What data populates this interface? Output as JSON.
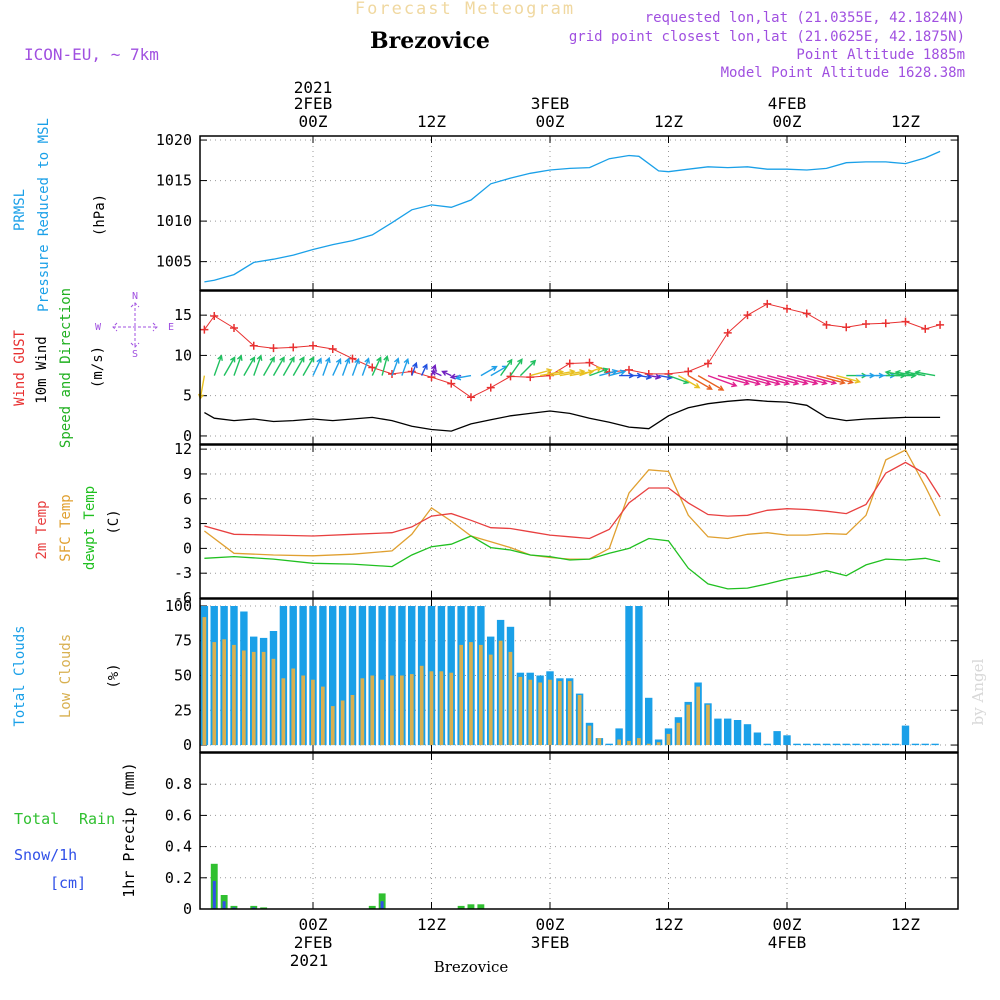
{
  "header": {
    "product": "Forecast Meteogram",
    "location": "Brezovice",
    "model": "ICON-EU, ~ 7km",
    "requested": "requested lon,lat (21.0355E, 42.1824N)",
    "gridpoint": "grid point closest lon,lat (21.0625E, 42.1875N)",
    "point_alt": "Point Altitude 1885m",
    "model_alt": "Model Point Altitude 1628.38m",
    "watermark": "by Angel",
    "footer": "Brezovice"
  },
  "time_axis": {
    "top_year": "2021",
    "bottom_year": "2021",
    "ticks": [
      {
        "hour": 0,
        "label": "00Z",
        "date": "2FEB"
      },
      {
        "hour": 12,
        "label": "12Z",
        "date": ""
      },
      {
        "hour": 24,
        "label": "00Z",
        "date": "3FEB"
      },
      {
        "hour": 36,
        "label": "12Z",
        "date": ""
      },
      {
        "hour": 48,
        "label": "00Z",
        "date": "4FEB"
      },
      {
        "hour": 60,
        "label": "12Z",
        "date": ""
      }
    ]
  },
  "panel_labels": {
    "p1": [
      "PRMSL",
      "Pressure Reduced to MSL",
      "(hPa)"
    ],
    "p2": [
      "Wind GUST",
      "10m Wind",
      "Speed and Direction",
      "(m/s)"
    ],
    "p3": [
      "2m Temp",
      "SFC Temp",
      "dewpt Temp",
      "(C)"
    ],
    "p4": [
      "Total Clouds",
      "Low Clouds",
      "(%)"
    ],
    "p5": [
      "Total",
      "Rain",
      "Snow/1h",
      "[cm]",
      "1hr Precip (mm)"
    ],
    "compass": [
      "N",
      "S",
      "W",
      "E"
    ]
  },
  "colors": {
    "pressure": "#1aa0e8",
    "gust": "#e83030",
    "wind": "#000000",
    "t2m": "#e84040",
    "sfc": "#e0a030",
    "dewpt": "#20c020",
    "total_clouds": "#1aa0e8",
    "low_clouds": "#d8b050",
    "rain": "#30c030",
    "snow": "#3050e8",
    "label_purple": "#a050e0"
  },
  "chart_data": [
    {
      "type": "line",
      "title": "PRMSL Pressure Reduced to MSL",
      "ylabel": "(hPa)",
      "ylim": [
        1001.5,
        1020.5
      ],
      "yticks": [
        1005,
        1010,
        1015,
        1020
      ],
      "x": [
        -11,
        -10,
        -8,
        -6,
        -4,
        -2,
        0,
        2,
        4,
        6,
        8,
        10,
        12,
        14,
        16,
        18,
        20,
        22,
        24,
        26,
        28,
        30,
        32,
        33,
        35,
        36,
        38,
        40,
        42,
        44,
        46,
        48,
        50,
        52,
        54,
        56,
        58,
        60,
        62,
        63.5
      ],
      "series": [
        {
          "name": "PRMSL",
          "values": [
            1002.5,
            1002.7,
            1003.4,
            1004.9,
            1005.3,
            1005.8,
            1006.5,
            1007.1,
            1007.6,
            1008.3,
            1009.8,
            1011.4,
            1012.0,
            1011.7,
            1012.6,
            1014.6,
            1015.3,
            1015.9,
            1016.3,
            1016.5,
            1016.6,
            1017.7,
            1018.1,
            1018.0,
            1016.2,
            1016.1,
            1016.4,
            1016.7,
            1016.6,
            1016.7,
            1016.4,
            1016.4,
            1016.3,
            1016.5,
            1017.2,
            1017.3,
            1017.3,
            1017.1,
            1017.8,
            1018.6
          ]
        }
      ]
    },
    {
      "type": "line",
      "title": "Wind GUST / 10m Wind Speed and Direction",
      "ylabel": "(m/s)",
      "ylim": [
        -1,
        18
      ],
      "yticks": [
        0,
        5,
        10,
        15
      ],
      "x": [
        -11,
        -10,
        -8,
        -6,
        -4,
        -2,
        0,
        2,
        4,
        6,
        8,
        10,
        12,
        14,
        16,
        18,
        20,
        22,
        24,
        26,
        28,
        30,
        32,
        34,
        36,
        38,
        40,
        42,
        44,
        46,
        48,
        50,
        52,
        54,
        56,
        58,
        60,
        62,
        63.5
      ],
      "series": [
        {
          "name": "Wind GUST",
          "values": [
            13.2,
            14.9,
            13.4,
            11.2,
            10.9,
            11.0,
            11.2,
            10.8,
            9.6,
            8.5,
            7.7,
            8.0,
            7.3,
            6.5,
            4.8,
            6.0,
            7.4,
            7.3,
            7.5,
            9.0,
            9.1,
            7.9,
            8.2,
            7.7,
            7.7,
            8.0,
            9.0,
            12.8,
            15.0,
            16.4,
            15.8,
            15.2,
            13.8,
            13.5,
            13.9,
            14.0,
            14.2,
            13.3,
            13.8
          ]
        },
        {
          "name": "10m Wind",
          "values": [
            2.9,
            2.2,
            1.9,
            2.1,
            1.8,
            1.9,
            2.1,
            1.9,
            2.1,
            2.3,
            1.9,
            1.2,
            0.8,
            0.6,
            1.5,
            2.0,
            2.5,
            2.8,
            3.1,
            2.8,
            2.2,
            1.7,
            1.1,
            0.9,
            2.5,
            3.5,
            4.0,
            4.3,
            4.5,
            4.3,
            4.2,
            3.8,
            2.3,
            1.9,
            2.1,
            2.2,
            2.3,
            2.3,
            2.3
          ]
        }
      ],
      "arrows": {
        "x": [
          -11,
          -10,
          -9,
          -8,
          -7,
          -6,
          -5,
          -4,
          -3,
          -2,
          -1,
          0,
          1,
          2,
          3,
          4,
          5,
          6,
          7,
          8,
          9,
          10,
          11,
          12,
          13,
          14,
          15,
          16,
          17,
          18,
          19,
          20,
          21,
          22,
          23,
          24,
          25,
          26,
          27,
          28,
          29,
          30,
          31,
          32,
          33,
          34,
          35,
          36,
          37,
          38,
          39,
          40,
          41,
          42,
          43,
          44,
          45,
          46,
          47,
          48,
          49,
          50,
          51,
          52,
          53,
          54,
          55,
          56,
          57,
          58,
          59,
          60,
          61,
          62,
          63
        ],
        "direction_deg": [
          10,
          200,
          210,
          200,
          210,
          200,
          210,
          210,
          210,
          210,
          210,
          205,
          200,
          205,
          200,
          200,
          200,
          205,
          195,
          200,
          200,
          200,
          205,
          200,
          115,
          115,
          80,
          80,
          240,
          240,
          215,
          215,
          225,
          255,
          260,
          260,
          260,
          260,
          250,
          250,
          255,
          255,
          270,
          270,
          280,
          280,
          280,
          290,
          300,
          300,
          300,
          290,
          285,
          285,
          285,
          285,
          285,
          285,
          285,
          285,
          285,
          285,
          285,
          285,
          285,
          270,
          270,
          270,
          270,
          270,
          270,
          100,
          100,
          100,
          100
        ],
        "speed": [
          2.9,
          2.5,
          2.5,
          2.5,
          2.5,
          2.5,
          2.5,
          2.5,
          2.5,
          2.5,
          2.5,
          2.1,
          2.1,
          2.0,
          2.0,
          1.9,
          2.0,
          2.3,
          2.3,
          2.0,
          1.9,
          1.2,
          1.0,
          0.8,
          0.7,
          0.6,
          0.7,
          1.5,
          2.0,
          2.1,
          2.2,
          2.3,
          2.5,
          2.6,
          2.8,
          3.1,
          3.1,
          2.9,
          2.8,
          2.2,
          2.0,
          1.7,
          1.4,
          1.1,
          1.0,
          0.9,
          1.2,
          2.5,
          3.0,
          3.5,
          3.8,
          4.0,
          4.3,
          4.5,
          4.6,
          4.5,
          4.4,
          4.3,
          4.2,
          4.2,
          4.1,
          4.0,
          3.8,
          3.5,
          3.0,
          2.3,
          2.0,
          1.9,
          2.1,
          2.2,
          2.3,
          2.3,
          2.3,
          2.3,
          2.3
        ]
      }
    },
    {
      "type": "line",
      "title": "2m Temp / SFC Temp / dewpt Temp",
      "ylabel": "(C)",
      "ylim": [
        -6,
        12.5
      ],
      "yticks": [
        -6,
        -3,
        0,
        3,
        6,
        9,
        12
      ],
      "x": [
        -11,
        -8,
        -4,
        0,
        4,
        8,
        10,
        12,
        14,
        16,
        18,
        20,
        22,
        24,
        26,
        28,
        30,
        32,
        34,
        36,
        38,
        40,
        42,
        44,
        46,
        48,
        50,
        52,
        54,
        56,
        58,
        60,
        62,
        63.5
      ],
      "series": [
        {
          "name": "2m Temp",
          "values": [
            2.7,
            1.7,
            1.6,
            1.5,
            1.7,
            1.9,
            2.6,
            3.9,
            4.2,
            3.4,
            2.5,
            2.4,
            2.0,
            1.6,
            1.4,
            1.2,
            2.3,
            5.5,
            7.3,
            7.3,
            5.5,
            4.1,
            3.9,
            4.0,
            4.6,
            4.8,
            4.7,
            4.5,
            4.2,
            5.3,
            9.1,
            10.4,
            9.0,
            6.2
          ]
        },
        {
          "name": "SFC Temp",
          "values": [
            2.1,
            -0.6,
            -0.8,
            -0.9,
            -0.7,
            -0.3,
            1.7,
            4.9,
            3.3,
            1.5,
            0.8,
            0.1,
            -0.8,
            -1.1,
            -1.3,
            -1.3,
            0.0,
            6.7,
            9.5,
            9.3,
            4.0,
            1.4,
            1.2,
            1.7,
            1.9,
            1.6,
            1.6,
            1.8,
            1.7,
            4.0,
            10.7,
            11.9,
            7.5,
            3.9
          ]
        },
        {
          "name": "dewpt Temp",
          "values": [
            -1.2,
            -1.0,
            -1.3,
            -1.8,
            -1.9,
            -2.2,
            -0.8,
            0.2,
            0.5,
            1.5,
            0.1,
            -0.2,
            -0.8,
            -1.0,
            -1.4,
            -1.3,
            -0.6,
            0.0,
            1.2,
            0.9,
            -2.4,
            -4.3,
            -4.9,
            -4.8,
            -4.3,
            -3.7,
            -3.3,
            -2.7,
            -3.3,
            -2.0,
            -1.3,
            -1.4,
            -1.2,
            -1.6
          ]
        }
      ]
    },
    {
      "type": "bar",
      "title": "Total Clouds / Low Clouds",
      "ylabel": "(%)",
      "ylim": [
        -5,
        105
      ],
      "yticks": [
        0,
        25,
        50,
        75,
        100
      ],
      "x": [
        -11,
        -10,
        -9,
        -8,
        -7,
        -6,
        -5,
        -4,
        -3,
        -2,
        -1,
        0,
        1,
        2,
        3,
        4,
        5,
        6,
        7,
        8,
        9,
        10,
        11,
        12,
        13,
        14,
        15,
        16,
        17,
        18,
        19,
        20,
        21,
        22,
        23,
        24,
        25,
        26,
        27,
        28,
        29,
        30,
        31,
        32,
        33,
        34,
        35,
        36,
        37,
        38,
        39,
        40,
        41,
        42,
        43,
        44,
        45,
        46,
        47,
        48,
        49,
        50,
        51,
        52,
        53,
        54,
        55,
        56,
        57,
        58,
        59,
        60,
        61,
        62,
        63
      ],
      "series": [
        {
          "name": "Total Clouds",
          "values": [
            100,
            100,
            100,
            100,
            96,
            78,
            77,
            82,
            100,
            100,
            100,
            100,
            100,
            100,
            100,
            100,
            100,
            100,
            100,
            100,
            100,
            100,
            100,
            100,
            100,
            100,
            100,
            100,
            100,
            78,
            90,
            85,
            52,
            52,
            50,
            53,
            48,
            48,
            37,
            16,
            5,
            1,
            12,
            100,
            100,
            34,
            4,
            12,
            20,
            31,
            45,
            30,
            19,
            19,
            18,
            15,
            9,
            1,
            10,
            7,
            1,
            1,
            1,
            1,
            1,
            1,
            1,
            1,
            1,
            1,
            1,
            14,
            1,
            1,
            1
          ]
        },
        {
          "name": "Low Clouds",
          "values": [
            92,
            74,
            76,
            72,
            68,
            67,
            67,
            62,
            48,
            55,
            50,
            47,
            42,
            28,
            32,
            36,
            48,
            50,
            47,
            50,
            50,
            51,
            57,
            53,
            53,
            52,
            72,
            74,
            72,
            65,
            75,
            67,
            49,
            47,
            45,
            47,
            46,
            46,
            36,
            14,
            5,
            0,
            4,
            3,
            5,
            1,
            2,
            8,
            16,
            29,
            42,
            29,
            0,
            0,
            0,
            0,
            0,
            0,
            0,
            0,
            0,
            0,
            0,
            0,
            0,
            0,
            0,
            0,
            0,
            0,
            0,
            0,
            0,
            0,
            0
          ]
        }
      ]
    },
    {
      "type": "bar",
      "title": "1hr Precip (mm)",
      "ylabel": "1hr Precip (mm)",
      "ylim": [
        0,
        1.0
      ],
      "yticks": [
        0,
        0.2,
        0.4,
        0.6,
        0.8
      ],
      "x": [
        -10,
        -9,
        -8,
        -6,
        -5,
        6,
        7,
        15,
        16,
        17
      ],
      "series": [
        {
          "name": "Total Rain",
          "values": [
            0.29,
            0.09,
            0.02,
            0.02,
            0.01,
            0.02,
            0.1,
            0.02,
            0.03,
            0.03
          ]
        },
        {
          "name": "Snow/1h",
          "values": [
            0.18,
            0.05,
            0.01,
            0.01,
            0.0,
            0.0,
            0.05,
            0.0,
            0.0,
            0.0
          ]
        }
      ]
    }
  ]
}
